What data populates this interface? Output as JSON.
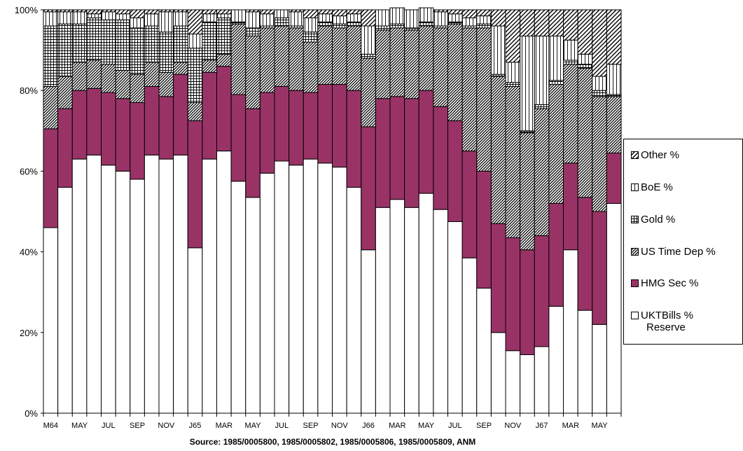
{
  "chart_data": {
    "type": "bar",
    "stacked": true,
    "percent": true,
    "ylim": [
      0,
      100
    ],
    "yticks": [
      "0%",
      "20%",
      "40%",
      "60%",
      "80%",
      "100%"
    ],
    "categories": [
      "M64",
      "",
      "MAY",
      "",
      "JUL",
      "",
      "SEP",
      "",
      "NOV",
      "",
      "J65",
      "",
      "MAR",
      "",
      "MAY",
      "",
      "JUL",
      "",
      "SEP",
      "",
      "NOV",
      "",
      "J66",
      "",
      "MAR",
      "",
      "MAY",
      "",
      "JUL",
      "",
      "SEP",
      "",
      "NOV",
      "",
      "J67",
      "",
      "MAR",
      "",
      "MAY",
      ""
    ],
    "series": [
      {
        "name": "UKTBills % Reserve",
        "color": "#ffffff",
        "pattern": "white",
        "values": [
          46,
          56,
          63,
          64,
          61.5,
          60,
          58,
          64,
          63,
          64,
          41,
          63,
          65,
          57.5,
          53.5,
          59.5,
          62.5,
          61.5,
          63,
          62,
          61,
          56,
          40.5,
          51,
          53,
          51,
          54.5,
          50.5,
          47.5,
          38.5,
          31,
          20,
          15.5,
          14.5,
          16.5,
          26.5,
          40.5,
          25.5,
          22,
          52
        ]
      },
      {
        "name": "HMG Sec %",
        "color": "#993366",
        "pattern": "solid",
        "values": [
          24.5,
          19.5,
          17,
          16.5,
          18,
          18,
          19,
          17,
          15.5,
          20,
          31.5,
          21.5,
          21,
          21.5,
          22,
          20,
          18.5,
          18.5,
          16.5,
          19.5,
          20.5,
          24,
          30.5,
          27,
          25.5,
          27,
          25.5,
          25.5,
          25,
          26.5,
          29,
          27,
          28,
          26,
          27.5,
          25.5,
          21.5,
          28,
          28,
          12.5
        ]
      },
      {
        "name": "US Time Dep %",
        "color": "#000000",
        "pattern": "diag-dense",
        "values": [
          10.5,
          8,
          7,
          7,
          7,
          7,
          7,
          6,
          6,
          3,
          4.5,
          3,
          3,
          17.5,
          18,
          16,
          15,
          15.5,
          12.5,
          14.5,
          14,
          16,
          17,
          17,
          17,
          17,
          16,
          19.5,
          24,
          30.5,
          35.5,
          36.5,
          37.5,
          29,
          31.5,
          29.5,
          24.5,
          32,
          28.5,
          14
        ]
      },
      {
        "name": "Gold %",
        "color": "#000000",
        "pattern": "grid",
        "values": [
          15,
          13,
          9.5,
          10.5,
          11,
          12.5,
          11.5,
          9,
          10,
          9,
          13.5,
          9.5,
          9,
          0.5,
          2,
          0.5,
          2,
          0.5,
          2.5,
          1,
          1,
          1,
          1,
          1,
          1,
          0.5,
          1,
          0.5,
          0.5,
          0.5,
          1,
          0.5,
          1,
          0.5,
          1,
          1,
          1,
          1,
          1.5,
          0.5
        ]
      },
      {
        "name": "BoE %",
        "color": "#000000",
        "pattern": "vertical",
        "values": [
          3.5,
          3,
          3,
          1,
          2,
          1.5,
          2.5,
          3,
          5,
          3.5,
          3.5,
          2,
          1,
          3,
          4,
          3,
          2,
          3.5,
          3.5,
          2,
          2,
          2,
          7,
          4,
          4,
          4.5,
          3.5,
          3.5,
          2,
          2,
          2,
          12,
          5,
          23.5,
          17,
          11,
          5,
          2.5,
          3.5,
          7.5
        ]
      },
      {
        "name": "Other %",
        "color": "#000000",
        "pattern": "diag-sparse",
        "values": [
          0.5,
          0.5,
          0.5,
          1,
          0.5,
          1,
          2,
          1,
          0.5,
          0.5,
          6,
          1,
          1,
          0,
          0.5,
          1,
          0,
          0.5,
          2,
          1,
          1.5,
          1,
          4,
          0,
          0,
          0,
          0,
          0.5,
          1,
          2,
          1.5,
          4,
          13,
          6.5,
          6.5,
          6.5,
          7.5,
          11,
          16.5,
          13.5
        ]
      }
    ]
  },
  "legend": [
    {
      "label": "Other %",
      "label2": "",
      "pattern": "diag-sparse"
    },
    {
      "label": "BoE %",
      "label2": "",
      "pattern": "vertical"
    },
    {
      "label": "Gold %",
      "label2": "",
      "pattern": "grid"
    },
    {
      "label": "US Time Dep %",
      "label2": "",
      "pattern": "diag-dense"
    },
    {
      "label": "HMG Sec %",
      "label2": "",
      "pattern": "solid"
    },
    {
      "label": "UKTBills %",
      "label2": "Reserve",
      "pattern": "white"
    }
  ],
  "source_note": "Source: 1985/0005800, 1985/0005802, 1985/0005806, 1985/0005809, ANM"
}
